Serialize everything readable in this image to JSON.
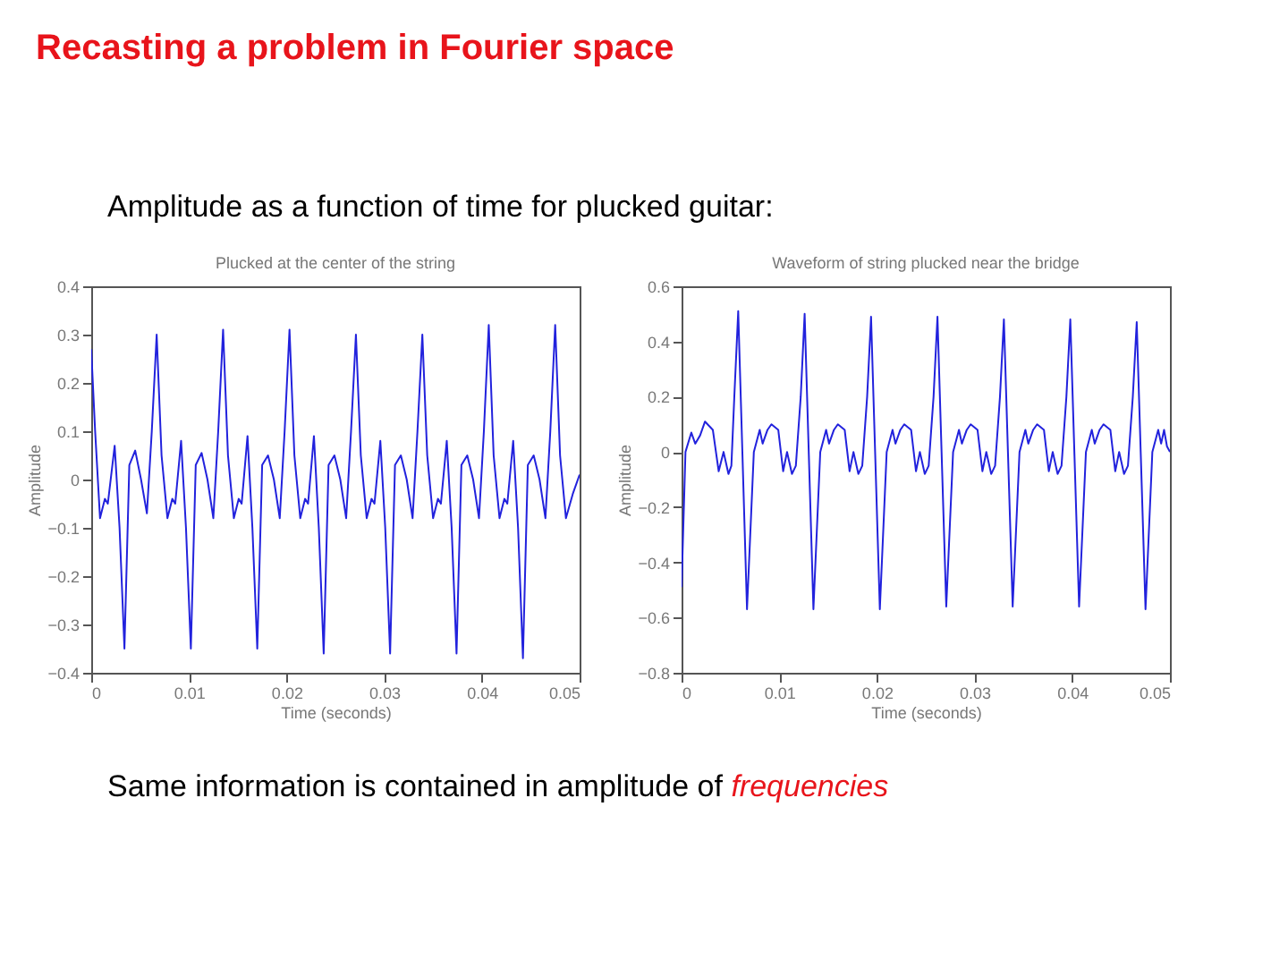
{
  "chart_data": [
    {
      "type": "line",
      "title": "Plucked at the center of the string",
      "xlabel": "Time (seconds)",
      "ylabel": "Amplitude",
      "color": "#2222dd",
      "annotations": [
        "Recasting a problem in Fourier space",
        "Amplitude as a function of time for plucked guitar:",
        "Same information is contained in amplitude of",
        "frequencies"
      ],
      "x": [
        0,
        0.0004,
        0.0009,
        0.0014,
        0.0017,
        0.0024,
        0.0029,
        0.0034,
        0.0039,
        0.0045,
        0.0051,
        0.0057,
        0.0062,
        0.0067,
        0.0072,
        0.0078,
        0.0083,
        0.0086,
        0.0092,
        0.0097,
        0.0102,
        0.0107,
        0.0113,
        0.0119,
        0.0125,
        0.013,
        0.0135,
        0.014,
        0.0146,
        0.0151,
        0.0154,
        0.016,
        0.0165,
        0.017,
        0.0175,
        0.0181,
        0.0187,
        0.0193,
        0.0198,
        0.0203,
        0.0208,
        0.0214,
        0.0219,
        0.0222,
        0.0228,
        0.0233,
        0.0238,
        0.0243,
        0.0249,
        0.0255,
        0.0261,
        0.0266,
        0.0271,
        0.0276,
        0.0282,
        0.0287,
        0.029,
        0.0296,
        0.0301,
        0.0306,
        0.0311,
        0.0317,
        0.0323,
        0.0329,
        0.0334,
        0.0339,
        0.0344,
        0.035,
        0.0355,
        0.0358,
        0.0364,
        0.0369,
        0.0374,
        0.0379,
        0.0385,
        0.0391,
        0.0397,
        0.0402,
        0.0407,
        0.0412,
        0.0418,
        0.0423,
        0.0426,
        0.0432,
        0.0437,
        0.0442,
        0.0447,
        0.0453,
        0.0459,
        0.0465,
        0.047,
        0.0475,
        0.048,
        0.0486,
        0.0493,
        0.05
      ],
      "values": [
        0.27,
        0.1,
        -0.08,
        -0.04,
        -0.05,
        0.07,
        -0.1,
        -0.35,
        0.03,
        0.06,
        0,
        -0.07,
        0.1,
        0.3,
        0.05,
        -0.08,
        -0.04,
        -0.05,
        0.08,
        -0.1,
        -0.35,
        0.03,
        0.055,
        0,
        -0.08,
        0.1,
        0.31,
        0.05,
        -0.08,
        -0.04,
        -0.05,
        0.09,
        -0.1,
        -0.35,
        0.03,
        0.05,
        0,
        -0.08,
        0.1,
        0.31,
        0.05,
        -0.08,
        -0.04,
        -0.05,
        0.09,
        -0.1,
        -0.36,
        0.03,
        0.05,
        0,
        -0.08,
        0.1,
        0.3,
        0.05,
        -0.08,
        -0.04,
        -0.05,
        0.08,
        -0.1,
        -0.36,
        0.03,
        0.05,
        0,
        -0.08,
        0.1,
        0.3,
        0.05,
        -0.08,
        -0.04,
        -0.05,
        0.08,
        -0.1,
        -0.36,
        0.03,
        0.05,
        0,
        -0.08,
        0.1,
        0.32,
        0.05,
        -0.08,
        -0.04,
        -0.05,
        0.08,
        -0.1,
        -0.37,
        0.03,
        0.05,
        0,
        -0.08,
        0.1,
        0.32,
        0.05,
        -0.08,
        -0.03,
        0.01
      ],
      "xlim": [
        0,
        0.05
      ],
      "ylim": [
        -0.4,
        0.4
      ],
      "xticks": [
        0,
        0.01,
        0.02,
        0.03,
        0.04,
        0.05
      ],
      "yticks": [
        -0.4,
        -0.3,
        -0.2,
        -0.1,
        0,
        0.1,
        0.2,
        0.3,
        0.4
      ]
    },
    {
      "type": "line",
      "title": "Waveform of string plucked near the bridge",
      "xlabel": "Time (seconds)",
      "ylabel": "Amplitude",
      "color": "#2222dd",
      "x": [
        0,
        0.0004,
        0.001,
        0.0014,
        0.0019,
        0.0024,
        0.0032,
        0.0038,
        0.0043,
        0.0048,
        0.0051,
        0.0054,
        0.0058,
        0.0067,
        0.0074,
        0.008,
        0.0083,
        0.0088,
        0.0092,
        0.0099,
        0.0104,
        0.0108,
        0.0113,
        0.0117,
        0.0122,
        0.0126,
        0.0135,
        0.0142,
        0.0148,
        0.0151,
        0.0156,
        0.016,
        0.0167,
        0.0172,
        0.0176,
        0.0181,
        0.0185,
        0.019,
        0.0194,
        0.0203,
        0.021,
        0.0216,
        0.0219,
        0.0224,
        0.0228,
        0.0235,
        0.024,
        0.0244,
        0.0249,
        0.0253,
        0.0258,
        0.0262,
        0.0271,
        0.0278,
        0.0284,
        0.0287,
        0.0292,
        0.0296,
        0.0303,
        0.0308,
        0.0312,
        0.0317,
        0.0321,
        0.0326,
        0.033,
        0.0339,
        0.0346,
        0.0352,
        0.0355,
        0.036,
        0.0364,
        0.0371,
        0.0376,
        0.038,
        0.0385,
        0.0389,
        0.0394,
        0.0398,
        0.0407,
        0.0414,
        0.042,
        0.0423,
        0.0428,
        0.0432,
        0.0439,
        0.0444,
        0.0448,
        0.0453,
        0.0457,
        0.0462,
        0.0466,
        0.0475,
        0.0482,
        0.0488,
        0.0491,
        0.0494,
        0.0497,
        0.05
      ],
      "values": [
        -0.49,
        0,
        0.07,
        0.03,
        0.06,
        0.11,
        0.08,
        -0.07,
        0,
        -0.08,
        -0.05,
        0.2,
        0.51,
        -0.57,
        0,
        0.08,
        0.03,
        0.08,
        0.1,
        0.08,
        -0.07,
        0,
        -0.08,
        -0.05,
        0.2,
        0.5,
        -0.57,
        0,
        0.08,
        0.03,
        0.08,
        0.1,
        0.08,
        -0.07,
        0,
        -0.08,
        -0.05,
        0.2,
        0.49,
        -0.57,
        0,
        0.08,
        0.03,
        0.08,
        0.1,
        0.08,
        -0.07,
        0,
        -0.08,
        -0.05,
        0.2,
        0.49,
        -0.56,
        0,
        0.08,
        0.03,
        0.08,
        0.1,
        0.08,
        -0.07,
        0,
        -0.08,
        -0.05,
        0.2,
        0.48,
        -0.56,
        0,
        0.08,
        0.03,
        0.08,
        0.1,
        0.08,
        -0.07,
        0,
        -0.08,
        -0.05,
        0.2,
        0.48,
        -0.56,
        0,
        0.08,
        0.03,
        0.08,
        0.1,
        0.08,
        -0.07,
        0,
        -0.08,
        -0.05,
        0.2,
        0.47,
        -0.57,
        0,
        0.08,
        0.03,
        0.08,
        0.02,
        0
      ],
      "xlim": [
        0,
        0.05
      ],
      "ylim": [
        -0.8,
        0.6
      ],
      "xticks": [
        0,
        0.01,
        0.02,
        0.03,
        0.04,
        0.05
      ],
      "yticks": [
        -0.8,
        -0.6,
        -0.4,
        -0.2,
        0,
        0.2,
        0.4,
        0.6
      ]
    }
  ]
}
